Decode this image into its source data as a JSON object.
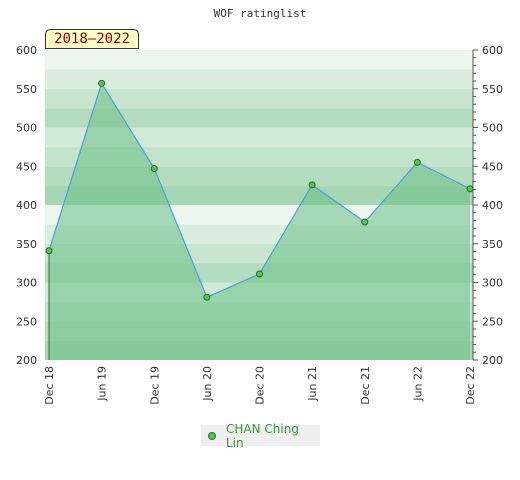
{
  "chart_data": {
    "type": "area",
    "title": "WOF ratinglist",
    "period": "2018–2022",
    "x": [
      "Dec 18",
      "Jun 19",
      "Dec 19",
      "Jun 20",
      "Dec 20",
      "Jun 21",
      "Dec 21",
      "Jun 22",
      "Dec 22"
    ],
    "series": [
      {
        "name": "CHAN Ching Lin",
        "values": [
          341,
          557,
          447,
          281,
          311,
          426,
          378,
          455,
          421
        ]
      }
    ],
    "ylim": [
      200,
      600
    ],
    "yticks": [
      200,
      250,
      300,
      350,
      400,
      450,
      500,
      550,
      600
    ],
    "legend": "bottom-center",
    "colors": {
      "line": "#4a9fd8",
      "fill": "#6cbf86",
      "marker": "#5fbf5f",
      "marker_stroke": "#1f6f1f",
      "legend_text": "#3a9a3a"
    }
  }
}
